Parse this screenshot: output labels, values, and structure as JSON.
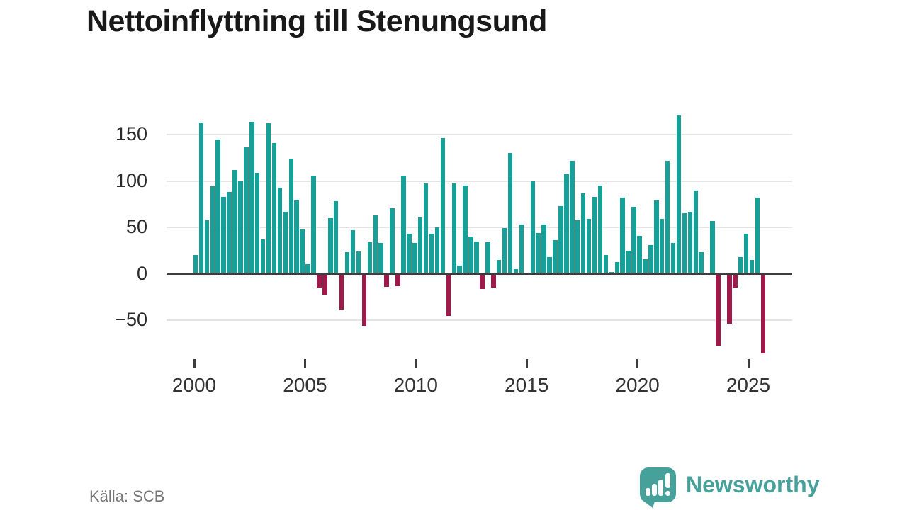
{
  "title": "Nettoinflyttning till Stenungsund",
  "source": "Källa: SCB",
  "brand": {
    "name": "Newsworthy",
    "icon": "bar-chart-speech-bubble-exclamation-icon"
  },
  "colors": {
    "positive_bar": "#16A098",
    "negative_bar": "#9D1A4B",
    "gridline": "#e4e4e4",
    "zero_axis": "#3d3d3d",
    "axis_text": "#2b2b2b",
    "title_text": "#191919",
    "source_text": "#767676",
    "brand_teal": "#45A19A"
  },
  "chart_data": {
    "type": "bar",
    "title": "Nettoinflyttning till Stenungsund",
    "xlabel": "",
    "ylabel": "",
    "frequency": "quarterly",
    "start_period": "2000 Q1",
    "end_period": "2025 Q2",
    "grid": "horizontal",
    "ylim": [
      -95,
      178
    ],
    "yticks": {
      "values": [
        150,
        100,
        50,
        0,
        -50
      ],
      "labels": [
        "150",
        "100",
        "50",
        "0",
        "−50"
      ]
    },
    "xticks": {
      "values": [
        2000,
        2005,
        2010,
        2015,
        2020,
        2025
      ],
      "labels": [
        "2000",
        "2005",
        "2010",
        "2015",
        "2020",
        "2025"
      ]
    },
    "values": [
      20,
      163,
      58,
      94,
      145,
      83,
      88,
      112,
      100,
      136,
      164,
      109,
      37,
      162,
      141,
      93,
      67,
      124,
      79,
      48,
      10,
      106,
      -14,
      -21,
      60,
      78,
      -37,
      23,
      47,
      24,
      -55,
      34,
      63,
      33,
      -13,
      71,
      -12,
      106,
      43,
      33,
      61,
      97,
      43,
      50,
      146,
      -44,
      97,
      9,
      95,
      40,
      35,
      -15,
      34,
      -14,
      15,
      49,
      130,
      5,
      53,
      0,
      100,
      44,
      53,
      18,
      36,
      73,
      107,
      122,
      58,
      87,
      59,
      83,
      95,
      20,
      2,
      13,
      82,
      25,
      72,
      41,
      16,
      31,
      79,
      59,
      122,
      33,
      171,
      65,
      67,
      90,
      23,
      0,
      57,
      -76,
      0,
      -53,
      -14,
      18,
      43,
      15,
      82,
      -85
    ]
  }
}
